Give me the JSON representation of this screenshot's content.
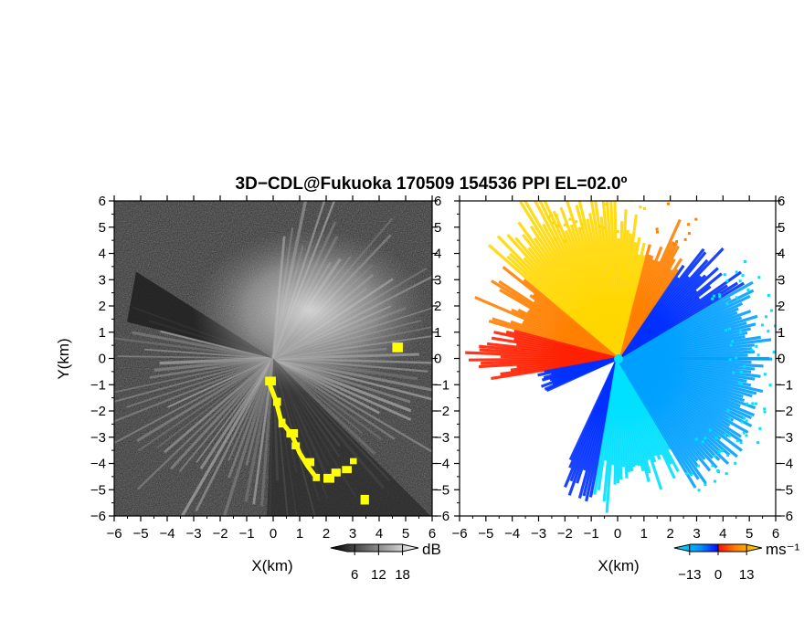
{
  "title": "3D−CDL@Fukuoka 170509 154536 PPI EL=02.0º",
  "chart_data": [
    {
      "type": "heatmap",
      "panel": "left",
      "description_field": "SNR PPI scan, grayscale",
      "xlabel": "X(km)",
      "ylabel": "Y(km)",
      "xlim": [
        -6,
        6
      ],
      "ylim": [
        -6,
        6
      ],
      "x_ticks": [
        "−6",
        "−5",
        "−4",
        "−3",
        "−2",
        "−1",
        "0",
        "1",
        "2",
        "3",
        "4",
        "5",
        "6"
      ],
      "y_ticks": [
        "−6",
        "−5",
        "−4",
        "−3",
        "−2",
        "−1",
        "0",
        "1",
        "2",
        "3",
        "4",
        "5",
        "6"
      ],
      "colorbar": {
        "unit": "dB",
        "ticks": [
          "6",
          "12",
          "18"
        ],
        "tick_values": [
          6,
          12,
          18
        ],
        "range": [
          0,
          22
        ]
      },
      "highlight_color": "#ffff00",
      "highlight_points": [
        [
          -0.2,
          -0.8
        ],
        [
          0.1,
          -1.6
        ],
        [
          0.3,
          -2.4
        ],
        [
          0.6,
          -2.8
        ],
        [
          0.8,
          -3.3
        ],
        [
          1.3,
          -3.9
        ],
        [
          1.6,
          -4.5
        ],
        [
          2.0,
          -4.5
        ],
        [
          2.3,
          -4.3
        ],
        [
          2.7,
          -4.2
        ],
        [
          3.0,
          -3.9
        ],
        [
          3.4,
          -5.3
        ],
        [
          4.6,
          0.5
        ]
      ]
    },
    {
      "type": "heatmap",
      "panel": "right",
      "description_field": "Radial velocity PPI scan",
      "xlabel": "X(km)",
      "xlim": [
        -6,
        6
      ],
      "ylim": [
        -6,
        6
      ],
      "x_ticks": [
        "−6",
        "−5",
        "−4",
        "−3",
        "−2",
        "−1",
        "0",
        "1",
        "2",
        "3",
        "4",
        "5",
        "6"
      ],
      "y_ticks": [
        "−6",
        "−5",
        "−4",
        "−3",
        "−2",
        "−1",
        "0",
        "1",
        "2",
        "3",
        "4",
        "5",
        "6"
      ],
      "colorbar": {
        "unit": "ms⁻¹",
        "ticks": [
          "−13",
          "0",
          "13"
        ],
        "tick_values": [
          -13,
          0,
          13
        ],
        "range": [
          -20,
          20
        ]
      },
      "colors": {
        "positive_far": "#ffd700",
        "positive_mid": "#ff8000",
        "positive_near": "#ff2000",
        "negative_near": "#0030ff",
        "negative_mid": "#00a0ff",
        "negative_far": "#00e0ff"
      }
    }
  ]
}
